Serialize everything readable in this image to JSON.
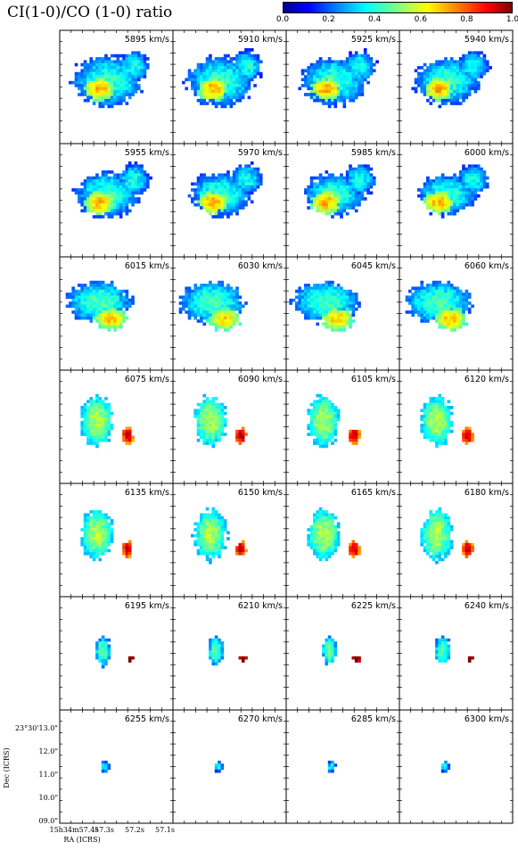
{
  "title": "CI(1-0)/CO (1-0) ratio",
  "colorbar": {
    "ticks": [
      "0.0",
      "0.2",
      "0.4",
      "0.6",
      "0.8",
      "1.0"
    ],
    "range": [
      0.0,
      1.0
    ],
    "colormap": "jet"
  },
  "chart_data": {
    "type": "heatmap",
    "title": "CI(1-0)/CO (1-0) ratio",
    "layout": "7 rows x 4 columns of velocity channel maps",
    "panels": [
      "5895 km/s",
      "5910 km/s",
      "5925 km/s",
      "5940 km/s",
      "5955 km/s",
      "5970 km/s",
      "5985 km/s",
      "6000 km/s",
      "6015 km/s",
      "6030 km/s",
      "6045 km/s",
      "6060 km/s",
      "6075 km/s",
      "6090 km/s",
      "6105 km/s",
      "6120 km/s",
      "6135 km/s",
      "6150 km/s",
      "6165 km/s",
      "6180 km/s",
      "6195 km/s",
      "6210 km/s",
      "6225 km/s",
      "6240 km/s",
      "6255 km/s",
      "6270 km/s",
      "6285 km/s",
      "6300 km/s"
    ],
    "xlabel": "RA (ICRS)",
    "ylabel": "Dec (ICRS)",
    "x_ticks": [
      "15h34m57.4s",
      "57.3s",
      "57.2s",
      "57.1s"
    ],
    "y_ticks": [
      "23°30'13.0\"",
      "12.0\"",
      "11.0\"",
      "10.0\"",
      "09.0\""
    ],
    "color_range": [
      0.0,
      1.0
    ]
  },
  "axes": {
    "xlabel": "RA (ICRS)",
    "ylabel": "Dec (ICRS)",
    "xticks": [
      "15h34m57.4s",
      "57.3s",
      "57.2s",
      "57.1s"
    ],
    "yticks": [
      "23°30'13.0\"",
      "12.0\"",
      "11.0\"",
      "10.0\"",
      "09.0\""
    ]
  }
}
